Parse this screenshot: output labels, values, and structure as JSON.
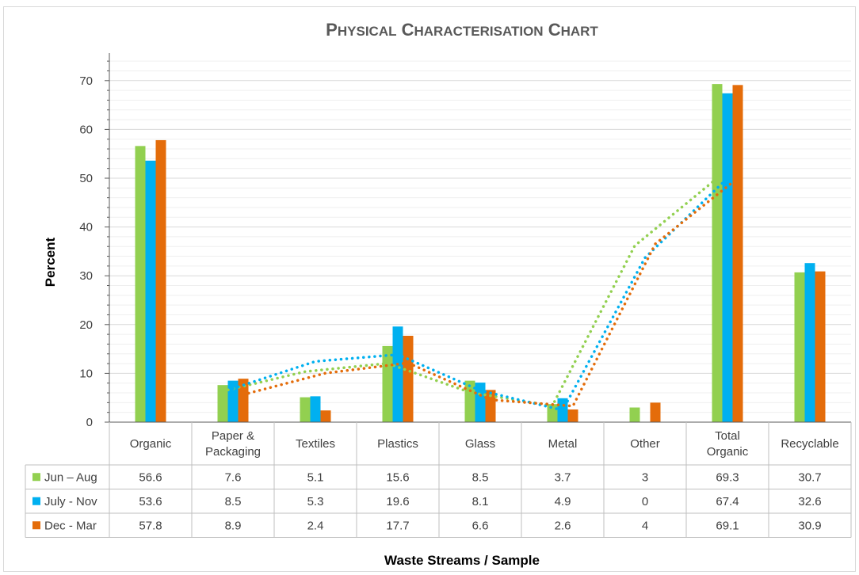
{
  "chart_data": {
    "type": "bar",
    "title": "Physical Characterisation Chart",
    "xlabel": "Waste Streams / Sample",
    "ylabel": "Percent",
    "ylim": [
      0,
      75
    ],
    "yticks": [
      0,
      10,
      20,
      30,
      40,
      50,
      60,
      70
    ],
    "grid": true,
    "legend": "data-table",
    "categories": [
      [
        "Organic"
      ],
      [
        "Paper &",
        "Packaging"
      ],
      [
        "Textiles"
      ],
      [
        "Plastics"
      ],
      [
        "Glass"
      ],
      [
        "Metal"
      ],
      [
        "Other"
      ],
      [
        "Total",
        "Organic"
      ],
      [
        "Recyclable"
      ]
    ],
    "series": [
      {
        "name": "Jun – Aug",
        "color": "#92d050",
        "values": [
          56.6,
          7.6,
          5.1,
          15.6,
          8.5,
          3.7,
          3,
          69.3,
          30.7
        ]
      },
      {
        "name": "July - Nov",
        "color": "#00b0f0",
        "values": [
          53.6,
          8.5,
          5.3,
          19.6,
          8.1,
          4.9,
          0,
          67.4,
          32.6
        ]
      },
      {
        "name": "Dec - Mar",
        "color": "#e46c0a",
        "values": [
          57.8,
          8.9,
          2.4,
          17.7,
          6.6,
          2.6,
          4,
          69.1,
          30.9
        ]
      }
    ],
    "trendlines": {
      "style": "dotted",
      "span_categories": [
        1,
        8
      ]
    }
  }
}
